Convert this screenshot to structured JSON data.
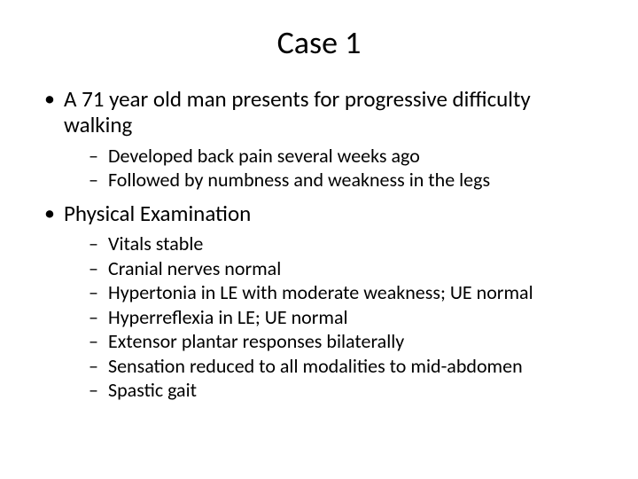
{
  "title": "Case 1",
  "bullets": [
    {
      "text": "A 71 year old man presents for progressive difficulty walking",
      "sub": [
        "Developed back pain several weeks ago",
        "Followed by numbness  and weakness in the legs"
      ]
    },
    {
      "text": "Physical Examination",
      "sub": [
        "Vitals stable",
        "Cranial nerves normal",
        "Hypertonia in LE with moderate weakness; UE normal",
        "Hyperreflexia in LE; UE normal",
        "Extensor plantar responses bilaterally",
        "Sensation reduced to all modalities to mid-abdomen",
        "Spastic gait"
      ]
    }
  ],
  "style": {
    "background_color": "#ffffff",
    "text_color": "#000000",
    "title_fontsize": 36,
    "level1_fontsize": 25,
    "level2_fontsize": 22,
    "font_family": "Calibri"
  }
}
